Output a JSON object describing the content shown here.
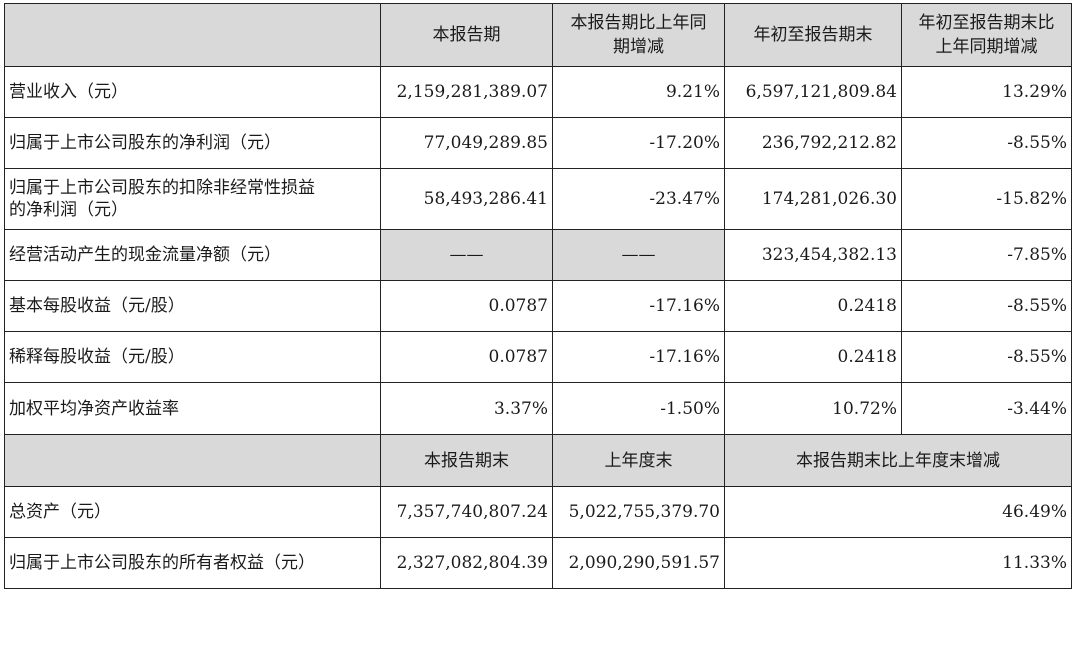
{
  "header1": {
    "col1": "本报告期",
    "col2_line1": "本报告期比上年同",
    "col2_line2": "期增减",
    "col3": "年初至报告期末",
    "col4_line1": "年初至报告期末比",
    "col4_line2": "上年同期增减"
  },
  "rows": [
    {
      "label": "营业收入（元）",
      "v1": "2,159,281,389.07",
      "v2": "9.21%",
      "v3": "6,597,121,809.84",
      "v4": "13.29%"
    },
    {
      "label": "归属于上市公司股东的净利润（元）",
      "v1": "77,049,289.85",
      "v2": "-17.20%",
      "v3": "236,792,212.82",
      "v4": "-8.55%"
    },
    {
      "label_line1": "归属于上市公司股东的扣除非经常性损益",
      "label_line2": "的净利润（元）",
      "v1": "58,493,286.41",
      "v2": "-23.47%",
      "v3": "174,281,026.30",
      "v4": "-15.82%"
    },
    {
      "label": "经营活动产生的现金流量净额（元）",
      "v1": "——",
      "v2": "——",
      "v3": "323,454,382.13",
      "v4": "-7.85%"
    },
    {
      "label": "基本每股收益（元/股）",
      "v1": "0.0787",
      "v2": "-17.16%",
      "v3": "0.2418",
      "v4": "-8.55%"
    },
    {
      "label": "稀释每股收益（元/股）",
      "v1": "0.0787",
      "v2": "-17.16%",
      "v3": "0.2418",
      "v4": "-8.55%"
    },
    {
      "label": "加权平均净资产收益率",
      "v1": "3.37%",
      "v2": "-1.50%",
      "v3": "10.72%",
      "v4": "-3.44%"
    }
  ],
  "header2": {
    "col1": "本报告期末",
    "col2": "上年度末",
    "col3": "本报告期末比上年度末增减"
  },
  "rows2": [
    {
      "label": "总资产（元）",
      "v1": "7,357,740,807.24",
      "v2": "5,022,755,379.70",
      "v3": "46.49%"
    },
    {
      "label": "归属于上市公司股东的所有者权益（元）",
      "v1": "2,327,082,804.39",
      "v2": "2,090,290,591.57",
      "v3": "11.33%"
    }
  ]
}
